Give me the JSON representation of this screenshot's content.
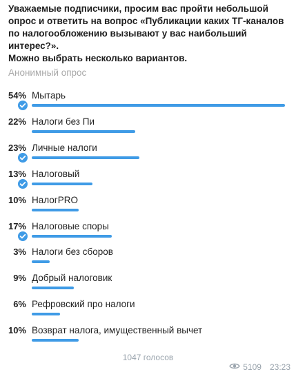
{
  "poll": {
    "question": "Уважаемые подписчики, просим вас пройти небольшой\nопрос и ответить на вопрос «Публикации каких ТГ-каналов\nпо налогообложению вызывают у вас наибольший\nинтерес?».\nМожно выбрать несколько вариантов.",
    "type_label": "Анонимный опрос",
    "options": [
      {
        "percent": "54%",
        "label": "Мытарь",
        "value": 54,
        "selected": true
      },
      {
        "percent": "22%",
        "label": "Налоги без Пи",
        "value": 22,
        "selected": false
      },
      {
        "percent": "23%",
        "label": "Личные налоги",
        "value": 23,
        "selected": true
      },
      {
        "percent": "13%",
        "label": "Налоговый",
        "value": 13,
        "selected": true
      },
      {
        "percent": "10%",
        "label": "НалогPRO",
        "value": 10,
        "selected": false
      },
      {
        "percent": "17%",
        "label": "Налоговые споры",
        "value": 17,
        "selected": true
      },
      {
        "percent": "3%",
        "label": "Налоги без сборов",
        "value": 3,
        "selected": false
      },
      {
        "percent": "9%",
        "label": "Добрый налоговик",
        "value": 9,
        "selected": false
      },
      {
        "percent": "6%",
        "label": "Рефровский про налоги",
        "value": 6,
        "selected": false
      },
      {
        "percent": "10%",
        "label": "Возврат налога, имущественный вычет",
        "value": 10,
        "selected": false
      }
    ],
    "total_votes": "1047 голосов"
  },
  "meta": {
    "eye_icon": "eye-icon",
    "views": "5109",
    "time": "23:23"
  },
  "colors": {
    "accent": "#3f9be6",
    "muted": "#9aa4ad"
  }
}
